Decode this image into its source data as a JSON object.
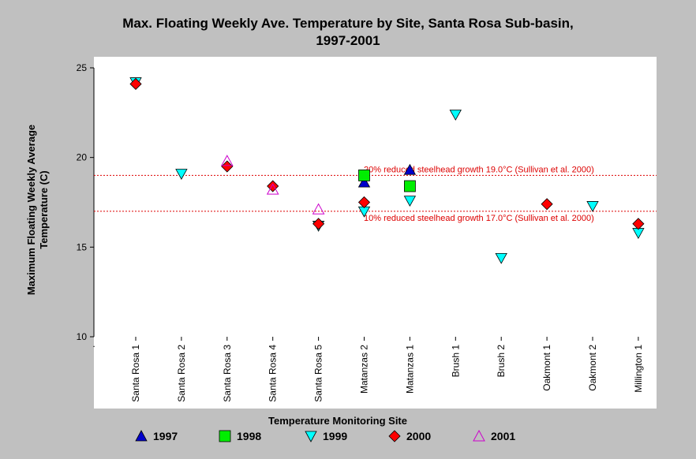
{
  "chart_data": {
    "type": "scatter",
    "title_line1": "Max. Floating Weekly Ave. Temperature by Site, Santa Rosa Sub-basin,",
    "title_line2": "1997-2001",
    "xlabel": "Temperature Monitoring Site",
    "ylabel_line1": "Maximum Floating Weekly Average",
    "ylabel_line2": "Temperature (C)",
    "ylim": [
      10,
      25
    ],
    "yticks": [
      "25",
      "20",
      "15",
      "10"
    ],
    "x_origin_label": ".",
    "categories": [
      "Santa Rosa 1",
      "Santa Rosa 2",
      "Santa Rosa 3",
      "Santa Rosa 4",
      "Santa Rosa 5",
      "Matanzas 2",
      "Matanzas 1",
      "Brush 1",
      "Brush 2",
      "Oakmont 1",
      "Oakmont 2",
      "Millington 1"
    ],
    "series": [
      {
        "name": "1997",
        "marker": "triangle-up",
        "color": "#0000cc",
        "values": [
          null,
          null,
          null,
          null,
          null,
          18.6,
          19.3,
          null,
          null,
          null,
          null,
          null
        ]
      },
      {
        "name": "1998",
        "marker": "square",
        "color": "#00ee00",
        "values": [
          null,
          null,
          null,
          null,
          null,
          19.0,
          18.4,
          null,
          null,
          null,
          null,
          null
        ]
      },
      {
        "name": "1999",
        "marker": "triangle-down",
        "color": "#00ffff",
        "values": [
          24.2,
          19.1,
          null,
          null,
          16.2,
          17.0,
          17.6,
          22.4,
          14.4,
          null,
          17.3,
          15.8
        ]
      },
      {
        "name": "2000",
        "marker": "diamond",
        "color": "#ff0000",
        "values": [
          24.1,
          null,
          19.5,
          18.4,
          16.3,
          17.5,
          null,
          null,
          null,
          17.4,
          null,
          16.3
        ]
      },
      {
        "name": "2001",
        "marker": "triangle-up-open",
        "color": "#cc00cc",
        "values": [
          null,
          null,
          19.8,
          18.2,
          17.1,
          null,
          null,
          null,
          null,
          null,
          null,
          null
        ]
      }
    ],
    "reference_lines": [
      {
        "value": 19.0,
        "label": "20% reduced steelhead growth 19.0°C (Sullivan et al. 2000)",
        "color": "#dd0000"
      },
      {
        "value": 17.0,
        "label": "10% reduced steelhead growth 17.0°C (Sullivan et al. 2000)",
        "color": "#dd0000"
      }
    ]
  }
}
